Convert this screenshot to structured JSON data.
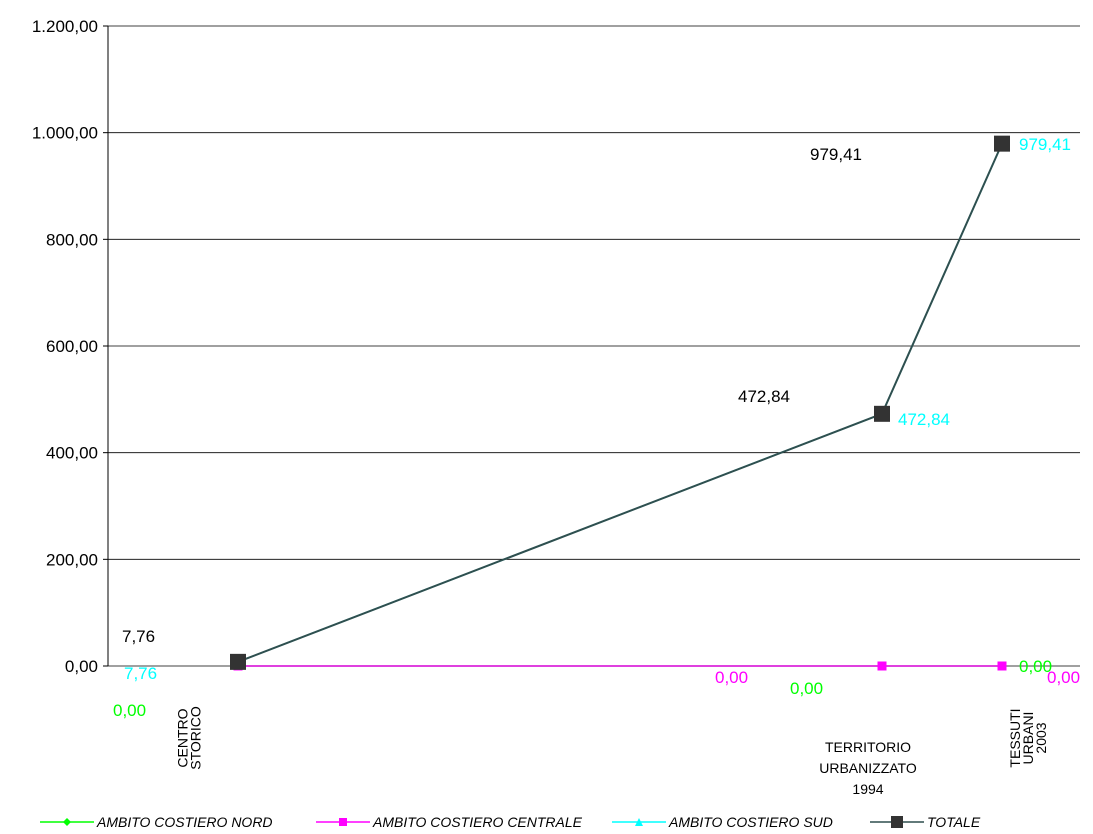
{
  "colors": {
    "nord": "#00ff00",
    "centrale": "#ff00ff",
    "sud": "#00ffff",
    "totale": "#2f4f4f",
    "marker_totale": "#333333",
    "grid": "#000000",
    "label_black": "#000000"
  },
  "chart_data": {
    "type": "line",
    "categories": [
      "CENTRO STORICO",
      "TERRITORIO URBANIZZATO 1994",
      "TESSUTI URBANI 2003"
    ],
    "category_lines": [
      [
        "CENTRO",
        "STORICO"
      ],
      [
        "TERRITORIO",
        "URBANIZZATO",
        "1994"
      ],
      [
        "TESSUTI",
        "URBANI",
        "2003"
      ]
    ],
    "ylim": [
      0,
      1200
    ],
    "yticks": [
      0,
      200,
      400,
      600,
      800,
      1000,
      1200
    ],
    "ytick_labels": [
      "0,00",
      "200,00",
      "400,00",
      "600,00",
      "800,00",
      "1.000,00",
      "1.200,00"
    ],
    "grid": true,
    "legend_position": "bottom",
    "series": [
      {
        "name": "AMBITO COSTIERO NORD",
        "key": "nord",
        "values": [
          0,
          0,
          0
        ],
        "data_labels": [
          "0,00",
          "0,00",
          "0,00"
        ],
        "marker": "diamond"
      },
      {
        "name": "AMBITO COSTIERO CENTRALE",
        "key": "centrale",
        "values": [
          0,
          0,
          0
        ],
        "data_labels": [
          "",
          "0,00",
          "0,00"
        ],
        "marker": "square"
      },
      {
        "name": "AMBITO COSTIERO SUD",
        "key": "sud",
        "values": [
          7.76,
          472.84,
          979.41
        ],
        "data_labels": [
          "7,76",
          "472,84",
          "979,41"
        ],
        "marker": "triangle"
      },
      {
        "name": "TOTALE",
        "key": "totale",
        "values": [
          7.76,
          472.84,
          979.41
        ],
        "data_labels": [
          "7,76",
          "472,84",
          "979,41"
        ],
        "marker": "square"
      }
    ]
  }
}
